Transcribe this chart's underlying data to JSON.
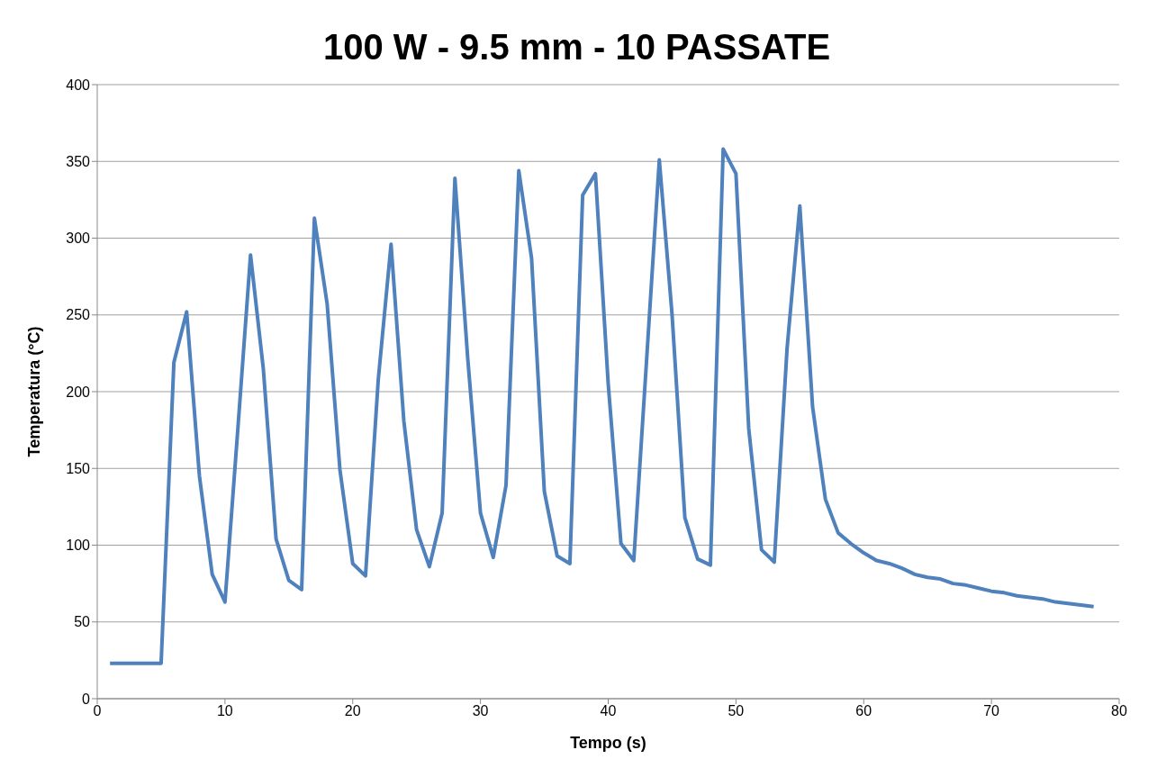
{
  "chart_data": {
    "type": "line",
    "title": "100 W - 9.5 mm - 10 PASSATE",
    "xlabel": "Tempo (s)",
    "ylabel": "Temperatura (°C)",
    "x": [
      1,
      2,
      3,
      4,
      5,
      6,
      7,
      8,
      9,
      10,
      11,
      12,
      13,
      14,
      15,
      16,
      17,
      18,
      19,
      20,
      21,
      22,
      23,
      24,
      25,
      26,
      27,
      28,
      29,
      30,
      31,
      32,
      33,
      34,
      35,
      36,
      37,
      38,
      39,
      40,
      41,
      42,
      43,
      44,
      45,
      46,
      47,
      48,
      49,
      50,
      51,
      52,
      53,
      54,
      55,
      56,
      57,
      58,
      59,
      60,
      61,
      62,
      63,
      64,
      65,
      66,
      67,
      68,
      69,
      70,
      71,
      72,
      73,
      74,
      75,
      76,
      77,
      78
    ],
    "series": [
      {
        "color": "#4f81bd",
        "values": [
          23,
          23,
          23,
          23,
          23,
          219,
          252,
          145,
          81,
          63,
          175,
          289,
          215,
          104,
          77,
          71,
          313,
          257,
          149,
          88,
          80,
          208,
          296,
          181,
          110,
          86,
          121,
          339,
          222,
          121,
          92,
          139,
          344,
          287,
          135,
          93,
          88,
          328,
          342,
          205,
          101,
          90,
          220,
          351,
          250,
          118,
          91,
          87,
          358,
          342,
          176,
          97,
          89,
          228,
          321,
          190,
          130,
          108,
          101,
          95,
          90,
          88,
          85,
          81,
          79,
          78,
          75,
          74,
          72,
          70,
          69,
          67,
          66,
          65,
          63,
          62,
          61,
          60
        ]
      }
    ],
    "xlim": [
      0,
      80
    ],
    "xticks": [
      0,
      10,
      20,
      30,
      40,
      50,
      60,
      70,
      80
    ],
    "ylim": [
      0,
      400
    ],
    "yticks": [
      0,
      50,
      100,
      150,
      200,
      250,
      300,
      350,
      400
    ],
    "grid": "y",
    "marker": "none",
    "line_style": "solid",
    "legend": false
  }
}
